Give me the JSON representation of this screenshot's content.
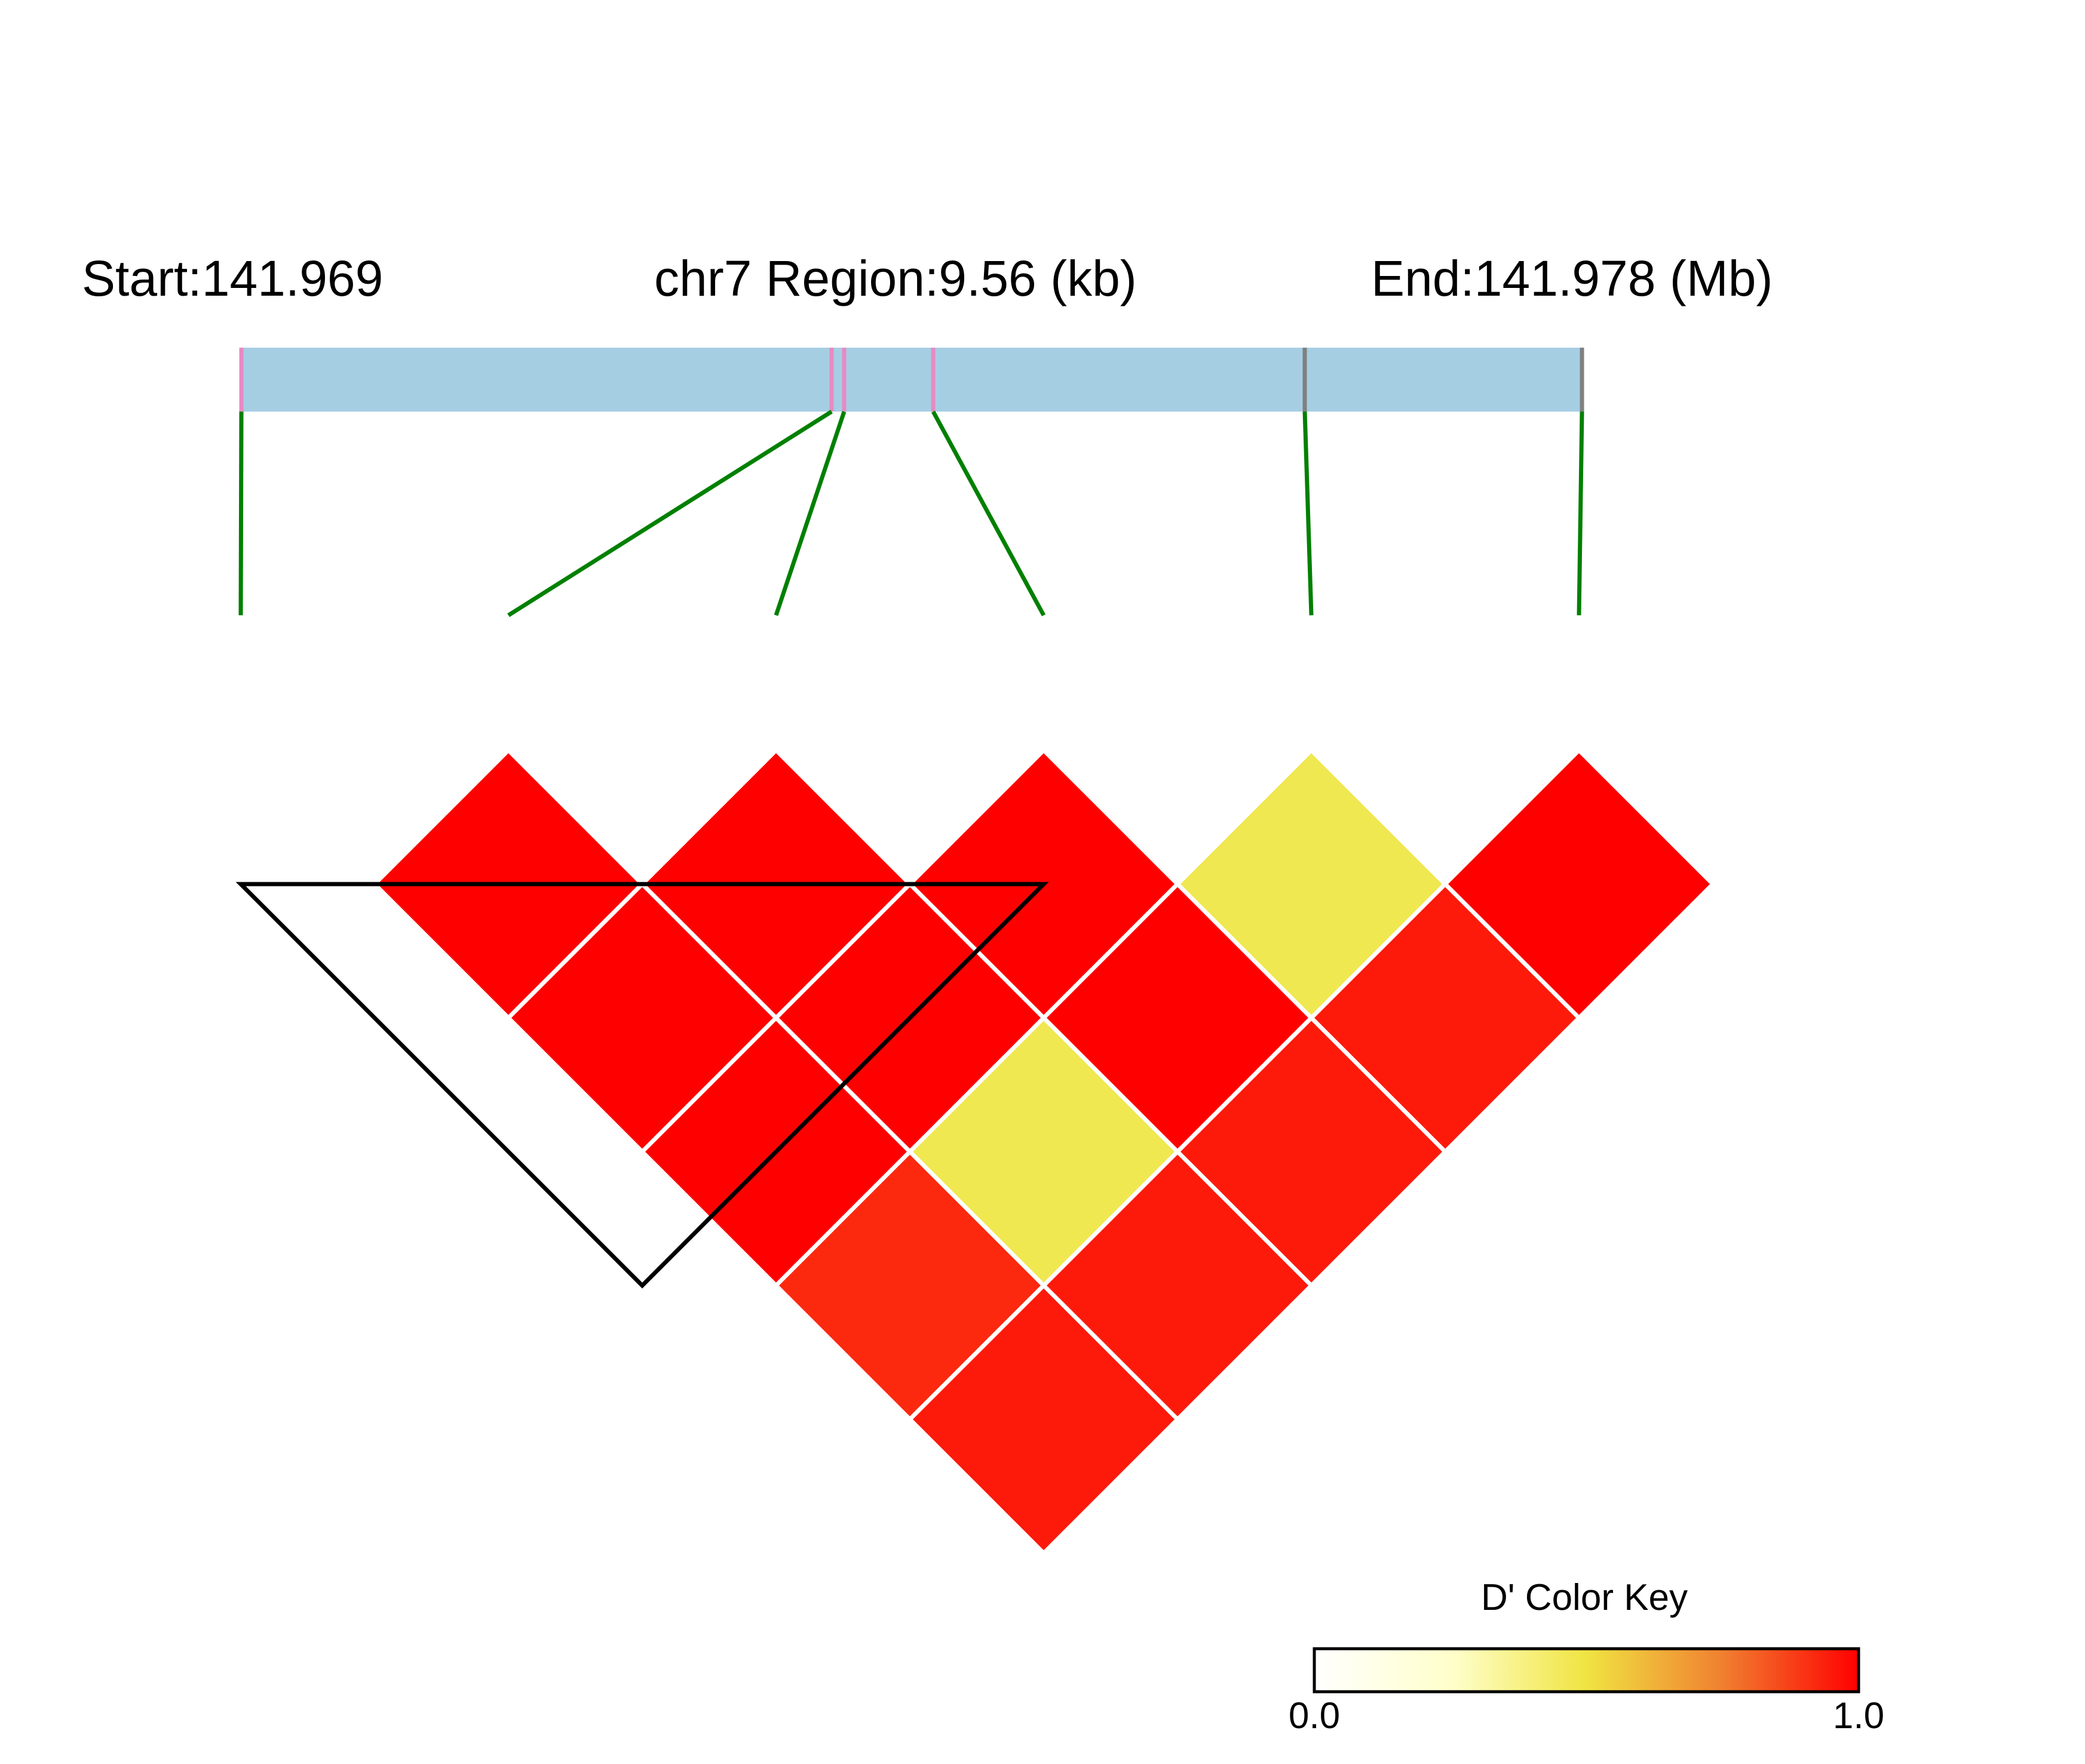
{
  "chart_data": {
    "type": "heatmap",
    "subtype": "ld-triangle",
    "header": {
      "start_label": "Start:141.969",
      "region_label": "chr7 Region:9.56 (kb)",
      "end_label": "End:141.978 (Mb)"
    },
    "region": {
      "bar_color": "#a6cee3",
      "connector_color": "#008000",
      "snps": [
        {
          "marker_color": "#e78ac3"
        },
        {
          "marker_color": "#e78ac3"
        },
        {
          "marker_color": "#e78ac3"
        },
        {
          "marker_color": "#e78ac3"
        },
        {
          "marker_color": "#808080"
        },
        {
          "marker_color": "#808080"
        }
      ]
    },
    "ld_matrix": {
      "metric": "D'",
      "n_snps": 6,
      "pairs": [
        {
          "i": 1,
          "j": 2,
          "value": 1.0
        },
        {
          "i": 2,
          "j": 3,
          "value": 1.0
        },
        {
          "i": 3,
          "j": 4,
          "value": 1.0
        },
        {
          "i": 4,
          "j": 5,
          "value": 0.5
        },
        {
          "i": 5,
          "j": 6,
          "value": 1.0
        },
        {
          "i": 1,
          "j": 3,
          "value": 1.0
        },
        {
          "i": 2,
          "j": 4,
          "value": 1.0
        },
        {
          "i": 3,
          "j": 5,
          "value": 1.0
        },
        {
          "i": 4,
          "j": 6,
          "value": 0.95
        },
        {
          "i": 1,
          "j": 4,
          "value": 1.0
        },
        {
          "i": 2,
          "j": 5,
          "value": 0.5
        },
        {
          "i": 3,
          "j": 6,
          "value": 0.95
        },
        {
          "i": 1,
          "j": 5,
          "value": 0.92
        },
        {
          "i": 2,
          "j": 6,
          "value": 0.95
        },
        {
          "i": 1,
          "j": 6,
          "value": 0.95
        }
      ]
    },
    "blocks": [
      {
        "from_snp": 1,
        "to_snp": 4
      }
    ],
    "color_key": {
      "title": "D' Color Key",
      "min_label": "0.0",
      "max_label": "1.0",
      "range": [
        0,
        1
      ],
      "colors": [
        "#ffffff",
        "#ffffcc",
        "#f0e442",
        "#f08030",
        "#ff0000"
      ]
    }
  }
}
